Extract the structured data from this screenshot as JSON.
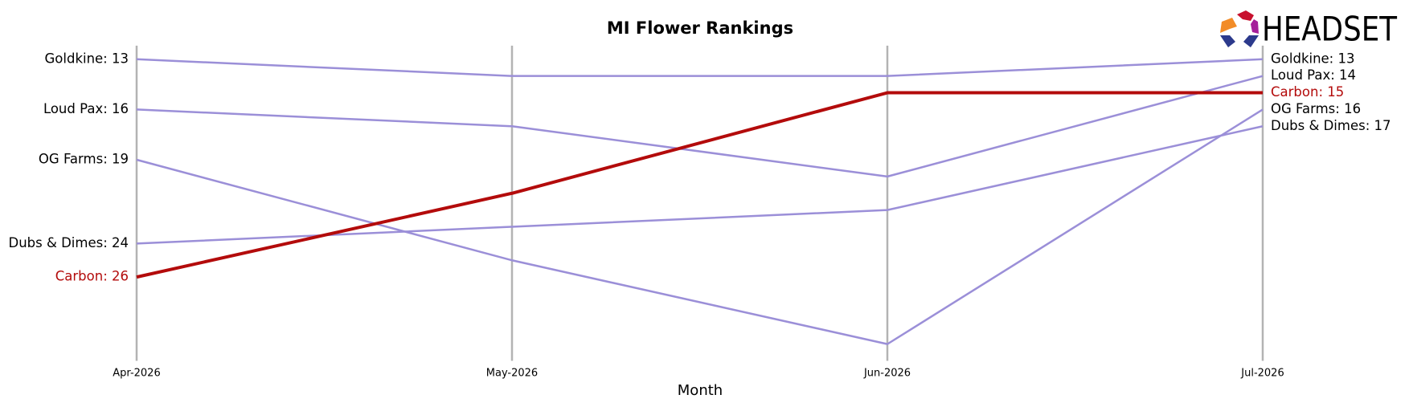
{
  "chart_data": {
    "type": "line",
    "title": "MI Flower Rankings",
    "logo": "HEADSET",
    "x_label": "Month",
    "categories": [
      "Apr-2026",
      "May-2026",
      "Jun-2026",
      "Jul-2026"
    ],
    "ylim": [
      12,
      31
    ],
    "y_inverted": true,
    "grid": "x",
    "series": [
      {
        "name": "Goldkine",
        "color": "#9b8fd8",
        "values": [
          13,
          14,
          14,
          13
        ],
        "value_labels": [
          "Goldkine: 13",
          null,
          null,
          "Goldkine: 13"
        ]
      },
      {
        "name": "Loud Pax",
        "color": "#9b8fd8",
        "values": [
          16,
          17,
          20,
          14
        ],
        "value_labels": [
          "Loud Pax: 16",
          null,
          null,
          "Loud Pax: 14"
        ]
      },
      {
        "name": "OG Farms",
        "color": "#9b8fd8",
        "values": [
          19,
          25,
          30,
          16
        ],
        "value_labels": [
          "OG Farms: 19",
          null,
          null,
          "OG Farms: 16"
        ]
      },
      {
        "name": "Dubs & Dimes",
        "color": "#9b8fd8",
        "values": [
          24,
          23,
          22,
          17
        ],
        "value_labels": [
          "Dubs & Dimes: 24",
          null,
          null,
          "Dubs & Dimes: 17"
        ]
      },
      {
        "name": "Carbon",
        "color": "#b30b0b",
        "emphasis": true,
        "values": [
          26,
          21,
          15,
          15
        ],
        "value_labels": [
          "Carbon: 26",
          null,
          null,
          "Carbon: 15"
        ]
      }
    ]
  }
}
